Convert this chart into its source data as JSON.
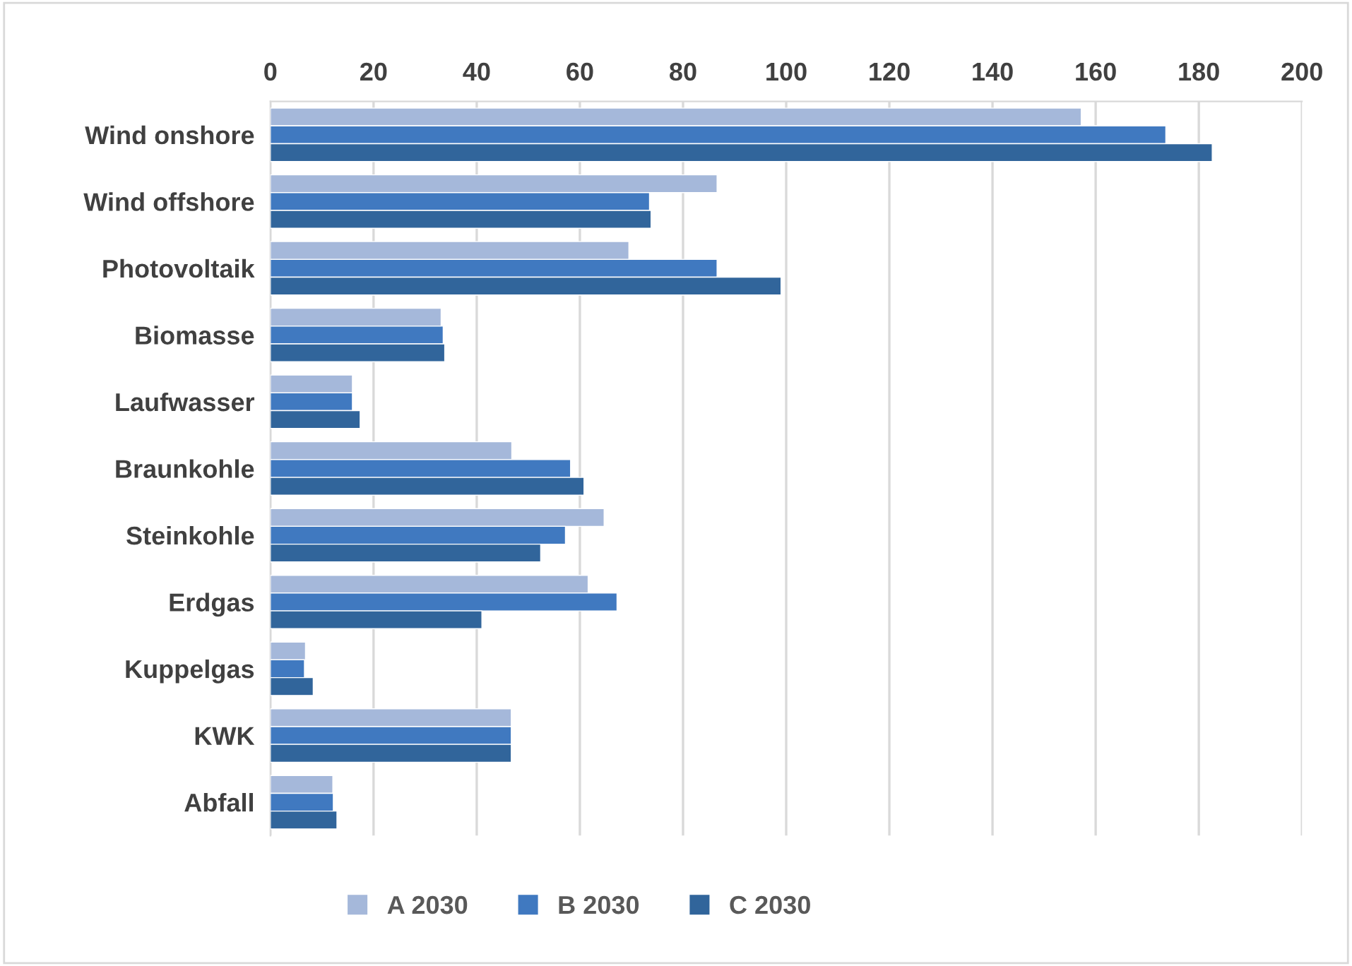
{
  "chart_data": {
    "type": "bar",
    "orientation": "horizontal",
    "categories": [
      "Wind onshore",
      "Wind offshore",
      "Photovoltaik",
      "Biomasse",
      "Laufwasser",
      "Braunkohle",
      "Steinkohle",
      "Erdgas",
      "Kuppelgas",
      "KWK",
      "Abfall"
    ],
    "series": [
      {
        "name": "A 2030",
        "color": "#a5b8da",
        "values": [
          157.2,
          86.6,
          69.5,
          33.1,
          15.9,
          46.8,
          64.7,
          61.6,
          6.8,
          46.7,
          12.1
        ]
      },
      {
        "name": "B 2030",
        "color": "#4079c0",
        "values": [
          173.6,
          73.5,
          86.6,
          33.5,
          15.9,
          58.2,
          57.2,
          67.2,
          6.6,
          46.7,
          12.2
        ]
      },
      {
        "name": "C 2030",
        "color": "#31659b",
        "values": [
          182.6,
          73.8,
          99.0,
          33.8,
          17.4,
          60.8,
          52.4,
          41.0,
          8.3,
          46.7,
          12.9
        ]
      }
    ],
    "xlim": [
      0,
      200
    ],
    "xticks": [
      0,
      20,
      40,
      60,
      80,
      100,
      120,
      140,
      160,
      180,
      200
    ],
    "grid": "x",
    "legend": "bottom"
  }
}
